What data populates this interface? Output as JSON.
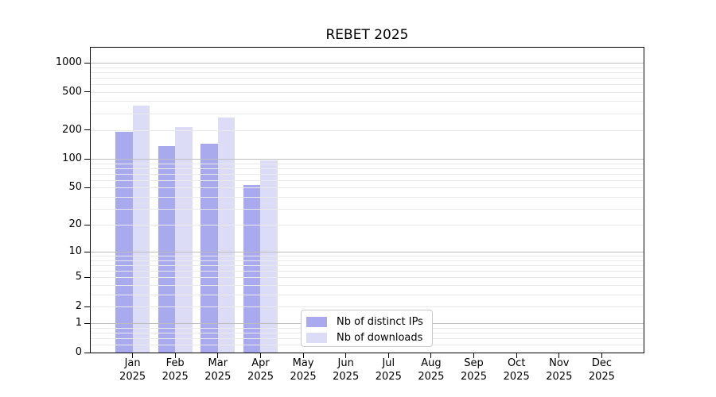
{
  "chart_data": {
    "type": "bar",
    "title": "REBET 2025",
    "categories": [
      "Jan 2025",
      "Feb 2025",
      "Mar 2025",
      "Apr 2025",
      "May 2025",
      "Jun 2025",
      "Jul 2025",
      "Aug 2025",
      "Sep 2025",
      "Oct 2025",
      "Nov 2025",
      "Dec 2025"
    ],
    "series": [
      {
        "name": "Nb of distinct IPs",
        "color": "#a9a9ee",
        "values": [
          190,
          135,
          145,
          53,
          0,
          0,
          0,
          0,
          0,
          0,
          0,
          0
        ]
      },
      {
        "name": "Nb of downloads",
        "color": "#dcdcf7",
        "values": [
          360,
          215,
          270,
          97,
          0,
          0,
          0,
          0,
          0,
          0,
          0,
          0
        ]
      }
    ],
    "yticks": [
      0,
      1,
      2,
      5,
      10,
      20,
      50,
      100,
      200,
      500,
      1000
    ],
    "ylim": [
      0,
      1000
    ],
    "yscale": "log1p",
    "xlabel": "",
    "ylabel": "",
    "grid": "horizontal major at decades, log minor lines",
    "legend_position": "inside bottom, left of center"
  }
}
